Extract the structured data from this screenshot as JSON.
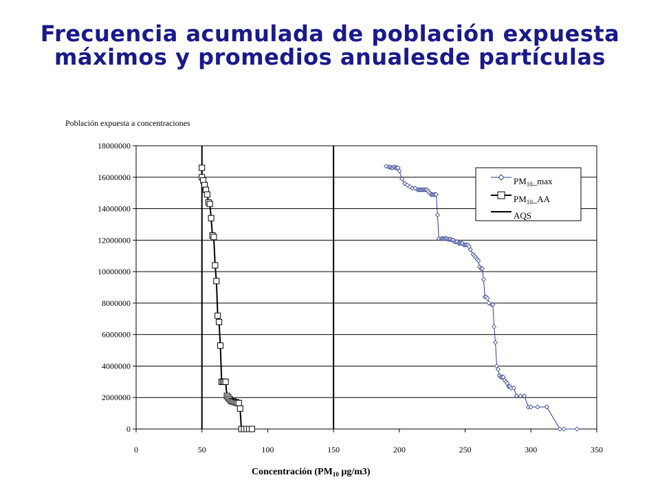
{
  "title_lines": [
    "Frecuencia acumulada de población expuesta",
    "máximos y promedios anualesde partículas"
  ],
  "chart_data": {
    "type": "line",
    "subtitle": "Población expuesta a concentraciones",
    "xlabel_main": "Concentración (PM",
    "xlabel_sub": "10",
    "xlabel_tail": "  µg/m3)",
    "xlim": [
      0,
      350
    ],
    "ylim": [
      0,
      18000000
    ],
    "xticks": [
      "0",
      "50",
      "100",
      "150",
      "200",
      "250",
      "300",
      "350"
    ],
    "yticks": [
      "0",
      "2000000",
      "4000000",
      "6000000",
      "8000000",
      "10000000",
      "12000000",
      "14000000",
      "16000000",
      "18000000"
    ],
    "grid": true,
    "legend_position": "top-right",
    "legend": [
      {
        "main": "PM",
        "sub": "10",
        "tail": "_max"
      },
      {
        "main": "PM",
        "sub": "10",
        "tail": "_AA"
      },
      {
        "main": "AQS",
        "sub": "",
        "tail": ""
      }
    ],
    "colors": {
      "max": "#2b3a8f",
      "aa": "#000000",
      "aqs": "#000000",
      "title": "#1a1a8a"
    },
    "aqs_lines": [
      50,
      150
    ],
    "series": [
      {
        "key": "aa",
        "marker": "square",
        "x": [
          50,
          50,
          51,
          52,
          53,
          54,
          55,
          56,
          57,
          58,
          59,
          60,
          61,
          62,
          63,
          64,
          65,
          66,
          67,
          68,
          69,
          70,
          71,
          72,
          73,
          74,
          75,
          76,
          77,
          78,
          79,
          80,
          82,
          84,
          86,
          88
        ],
        "y": [
          16600000,
          16000000,
          15800000,
          15500000,
          15200000,
          14900000,
          14400000,
          14300000,
          13400000,
          12300000,
          12200000,
          10400000,
          9400000,
          7200000,
          6800000,
          5300000,
          3000000,
          3000000,
          3000000,
          3000000,
          2100000,
          2000000,
          1900000,
          1800000,
          1750000,
          1750000,
          1700000,
          1700000,
          1650000,
          1650000,
          1300000,
          0,
          0,
          0,
          0,
          0
        ]
      },
      {
        "key": "max",
        "marker": "diamond",
        "x": [
          190,
          192,
          193,
          194,
          195,
          196,
          197,
          198,
          199,
          200,
          202,
          204,
          206,
          208,
          210,
          212,
          214,
          215,
          216,
          217,
          218,
          219,
          220,
          221,
          222,
          223,
          224,
          225,
          226,
          227,
          228,
          229,
          230,
          232,
          233,
          234,
          235,
          236,
          237,
          238,
          239,
          240,
          241,
          242,
          243,
          244,
          245,
          246,
          247,
          248,
          249,
          250,
          251,
          252,
          253,
          254,
          256,
          257,
          258,
          259,
          260,
          261,
          262,
          263,
          264,
          265,
          266,
          267,
          268,
          270,
          271,
          272,
          273,
          274,
          275,
          276,
          277,
          278,
          279,
          280,
          281,
          282,
          283,
          284,
          285,
          287,
          289,
          292,
          295,
          298,
          300,
          305,
          312,
          322,
          325,
          335
        ],
        "y": [
          16700000,
          16650000,
          16650000,
          16600000,
          16600000,
          16650000,
          16600000,
          16600000,
          16600000,
          16400000,
          15900000,
          15600000,
          15500000,
          15400000,
          15300000,
          15300000,
          15200000,
          15200000,
          15200000,
          15200000,
          15200000,
          15200000,
          15200000,
          15200000,
          15100000,
          15000000,
          14900000,
          14900000,
          14900000,
          14900000,
          14900000,
          13600000,
          12100000,
          12100000,
          12100000,
          12100000,
          12100000,
          12100000,
          12050000,
          12050000,
          12050000,
          12000000,
          12000000,
          11900000,
          11900000,
          11900000,
          11800000,
          11800000,
          11800000,
          11800000,
          11700000,
          11700000,
          11700000,
          11700000,
          11600000,
          11400000,
          11100000,
          11000000,
          10900000,
          10800000,
          10700000,
          10300000,
          10200000,
          10200000,
          9500000,
          8400000,
          8400000,
          8300000,
          8000000,
          7900000,
          7900000,
          6500000,
          5500000,
          4000000,
          3800000,
          3400000,
          3300000,
          3300000,
          3300000,
          3100000,
          3000000,
          2900000,
          2700000,
          2700000,
          2600000,
          2600000,
          2100000,
          2100000,
          2100000,
          1400000,
          1400000,
          1400000,
          1400000,
          0,
          0,
          0
        ]
      }
    ]
  }
}
